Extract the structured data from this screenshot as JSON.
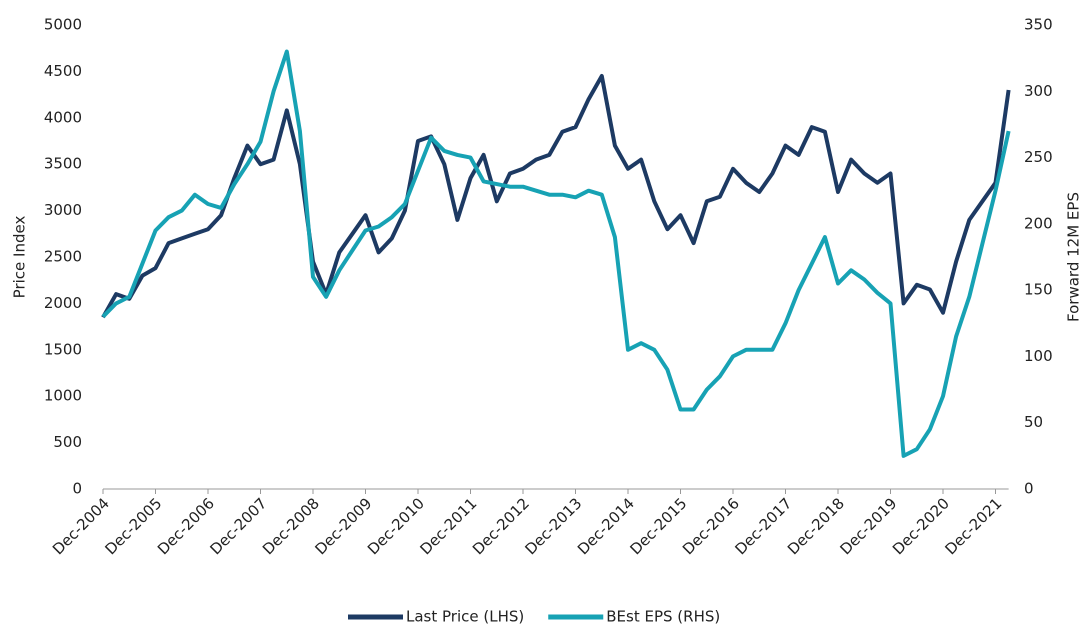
{
  "chart_data": {
    "type": "line",
    "ylabel": "Price Index",
    "y2label": "Forward 12M EPS",
    "categories": [
      "Dec-2004",
      null,
      null,
      null,
      "Dec-2005",
      null,
      null,
      null,
      "Dec-2006",
      null,
      null,
      null,
      "Dec-2007",
      null,
      null,
      null,
      "Dec-2008",
      null,
      null,
      null,
      "Dec-2009",
      null,
      null,
      null,
      "Dec-2010",
      null,
      null,
      null,
      "Dec-2011",
      null,
      null,
      null,
      "Dec-2012",
      null,
      null,
      null,
      "Dec-2013",
      null,
      null,
      null,
      "Dec-2014",
      null,
      null,
      null,
      "Dec-2015",
      null,
      null,
      null,
      "Dec-2016",
      null,
      null,
      null,
      "Dec-2017",
      null,
      null,
      null,
      "Dec-2018",
      null,
      null,
      null,
      "Dec-2019",
      null,
      null,
      null,
      "Dec-2020",
      null,
      null,
      null,
      "Dec-2021",
      null
    ],
    "series": [
      {
        "name": "Last Price (LHS)",
        "color": "#1d3a63",
        "values": [
          1850,
          2100,
          2050,
          2300,
          2380,
          2650,
          2700,
          2750,
          2800,
          2950,
          3350,
          3700,
          3500,
          3550,
          4080,
          3500,
          2450,
          2100,
          2550,
          2750,
          2950,
          2550,
          2700,
          3000,
          3750,
          3800,
          3500,
          2900,
          3350,
          3600,
          3100,
          3400,
          3450,
          3550,
          3600,
          3850,
          3900,
          4200,
          4450,
          3700,
          3450,
          3550,
          3100,
          2800,
          2950,
          2650,
          3100,
          3150,
          3450,
          3300,
          3200,
          3400,
          3700,
          3600,
          3900,
          3850,
          3200,
          3550,
          3400,
          3300,
          3400,
          2000,
          2200,
          2150,
          1900,
          2450,
          2900,
          3100,
          3300,
          4300
        ]
      },
      {
        "name": "BEst EPS (RHS)",
        "color": "#17a2b4",
        "axis": "y2",
        "values": [
          130,
          140,
          145,
          170,
          195,
          205,
          210,
          222,
          215,
          212,
          230,
          245,
          262,
          300,
          330,
          270,
          160,
          145,
          165,
          180,
          195,
          198,
          205,
          215,
          240,
          265,
          255,
          252,
          250,
          232,
          230,
          228,
          228,
          225,
          222,
          222,
          220,
          225,
          222,
          190,
          105,
          110,
          105,
          90,
          60,
          60,
          75,
          85,
          100,
          105,
          105,
          105,
          125,
          150,
          170,
          190,
          155,
          165,
          158,
          148,
          140,
          25,
          30,
          45,
          70,
          115,
          145,
          185,
          225,
          270
        ]
      }
    ],
    "ylim": [
      0,
      5000
    ],
    "yticks": [
      0,
      500,
      1000,
      1500,
      2000,
      2500,
      3000,
      3500,
      4000,
      4500,
      5000
    ],
    "y2lim": [
      0,
      350
    ],
    "y2ticks": [
      0,
      50,
      100,
      150,
      200,
      250,
      300,
      350
    ],
    "legend": "bottom"
  }
}
